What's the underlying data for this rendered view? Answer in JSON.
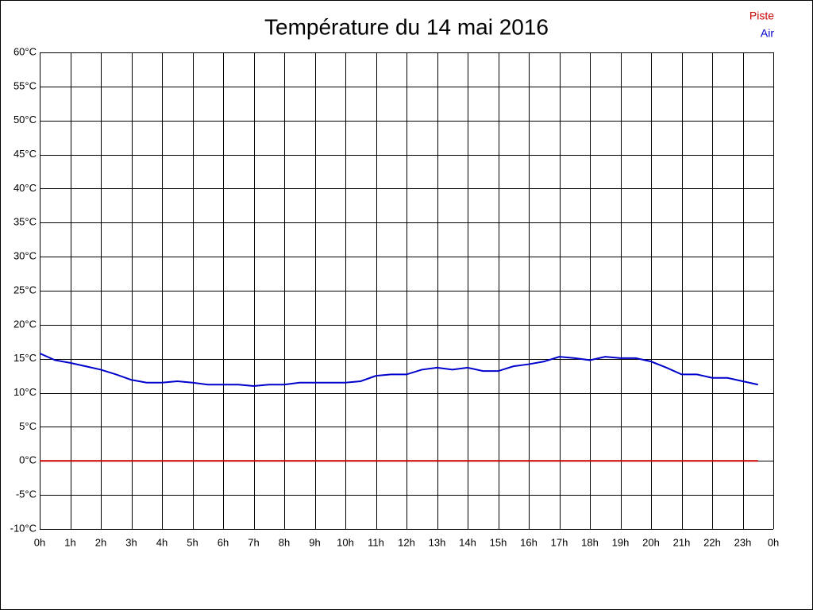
{
  "chart_data": {
    "type": "line",
    "title": "Température du 14 mai 2016",
    "x": [
      0,
      0.5,
      1,
      1.5,
      2,
      2.5,
      3,
      3.5,
      4,
      4.5,
      5,
      5.5,
      6,
      6.5,
      7,
      7.5,
      8,
      8.5,
      9,
      9.5,
      10,
      10.5,
      11,
      11.5,
      12,
      12.5,
      13,
      13.5,
      14,
      14.5,
      15,
      15.5,
      16,
      16.5,
      17,
      17.5,
      18,
      18.5,
      19,
      19.5,
      20,
      20.5,
      21,
      21.5,
      22,
      22.5,
      23,
      23.5
    ],
    "series": [
      {
        "name": "Piste",
        "color": "#cc0000",
        "values": [
          0,
          0,
          0,
          0,
          0,
          0,
          0,
          0,
          0,
          0,
          0,
          0,
          0,
          0,
          0,
          0,
          0,
          0,
          0,
          0,
          0,
          0,
          0,
          0,
          0,
          0,
          0,
          0,
          0,
          0,
          0,
          0,
          0,
          0,
          0,
          0,
          0,
          0,
          0,
          0,
          0,
          0,
          0,
          0,
          0,
          0,
          0,
          0
        ]
      },
      {
        "name": "Air",
        "color": "#0000cc",
        "values": [
          15.8,
          14.8,
          14.4,
          13.9,
          13.4,
          12.7,
          11.9,
          11.5,
          11.5,
          11.7,
          11.5,
          11.2,
          11.2,
          11.2,
          11.0,
          11.2,
          11.2,
          11.5,
          11.5,
          11.5,
          11.5,
          11.7,
          12.5,
          12.7,
          12.7,
          13.4,
          13.7,
          13.4,
          13.7,
          13.2,
          13.2,
          13.9,
          14.2,
          14.6,
          15.3,
          15.1,
          14.8,
          15.3,
          15.1,
          15.1,
          14.6,
          13.7,
          12.7,
          12.7,
          12.2,
          12.2,
          11.7,
          11.2
        ]
      }
    ],
    "xlim": [
      0,
      24
    ],
    "xticks": [
      {
        "value": 0,
        "label": "0h"
      },
      {
        "value": 1,
        "label": "1h"
      },
      {
        "value": 2,
        "label": "2h"
      },
      {
        "value": 3,
        "label": "3h"
      },
      {
        "value": 4,
        "label": "4h"
      },
      {
        "value": 5,
        "label": "5h"
      },
      {
        "value": 6,
        "label": "6h"
      },
      {
        "value": 7,
        "label": "7h"
      },
      {
        "value": 8,
        "label": "8h"
      },
      {
        "value": 9,
        "label": "9h"
      },
      {
        "value": 10,
        "label": "10h"
      },
      {
        "value": 11,
        "label": "11h"
      },
      {
        "value": 12,
        "label": "12h"
      },
      {
        "value": 13,
        "label": "13h"
      },
      {
        "value": 14,
        "label": "14h"
      },
      {
        "value": 15,
        "label": "15h"
      },
      {
        "value": 16,
        "label": "16h"
      },
      {
        "value": 17,
        "label": "17h"
      },
      {
        "value": 18,
        "label": "18h"
      },
      {
        "value": 19,
        "label": "19h"
      },
      {
        "value": 20,
        "label": "20h"
      },
      {
        "value": 21,
        "label": "21h"
      },
      {
        "value": 22,
        "label": "22h"
      },
      {
        "value": 23,
        "label": "23h"
      },
      {
        "value": 24,
        "label": "0h"
      }
    ],
    "ylim": [
      -10,
      60
    ],
    "yticks": [
      {
        "value": 60,
        "label": "60°C"
      },
      {
        "value": 55,
        "label": "55°C"
      },
      {
        "value": 50,
        "label": "50°C"
      },
      {
        "value": 45,
        "label": "45°C"
      },
      {
        "value": 40,
        "label": "40°C"
      },
      {
        "value": 35,
        "label": "35°C"
      },
      {
        "value": 30,
        "label": "30°C"
      },
      {
        "value": 25,
        "label": "25°C"
      },
      {
        "value": 20,
        "label": "20°C"
      },
      {
        "value": 15,
        "label": "15°C"
      },
      {
        "value": 10,
        "label": "10°C"
      },
      {
        "value": 5,
        "label": "5°C"
      },
      {
        "value": 0,
        "label": "0°C"
      },
      {
        "value": -5,
        "label": "-5°C"
      },
      {
        "value": -10,
        "label": "-10°C"
      }
    ],
    "grid": true,
    "legend": "top-right"
  }
}
